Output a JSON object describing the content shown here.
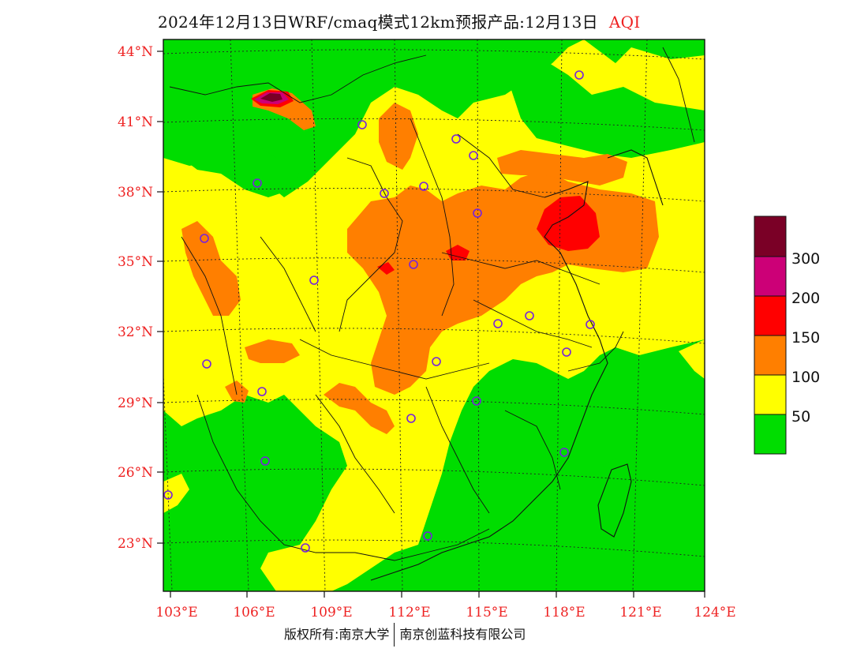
{
  "title": {
    "main": "2024年12月13日WRF/cmaq模式12km预报产品:12月13日",
    "product": "AQI"
  },
  "lat_labels": [
    "44°N",
    "41°N",
    "38°N",
    "35°N",
    "32°N",
    "29°N",
    "26°N",
    "23°N"
  ],
  "lon_labels": [
    "103°E",
    "106°E",
    "109°E",
    "112°E",
    "115°E",
    "118°E",
    "121°E",
    "124°E"
  ],
  "legend": {
    "colors": [
      "#00dd00",
      "#ffff00",
      "#ff7f00",
      "#ff0000",
      "#cc0077",
      "#7a0026"
    ],
    "labels": [
      "50",
      "100",
      "150",
      "200",
      "300"
    ]
  },
  "footer": {
    "left": "版权所有:南京大学",
    "right": "南京创蓝科技有限公司"
  }
}
